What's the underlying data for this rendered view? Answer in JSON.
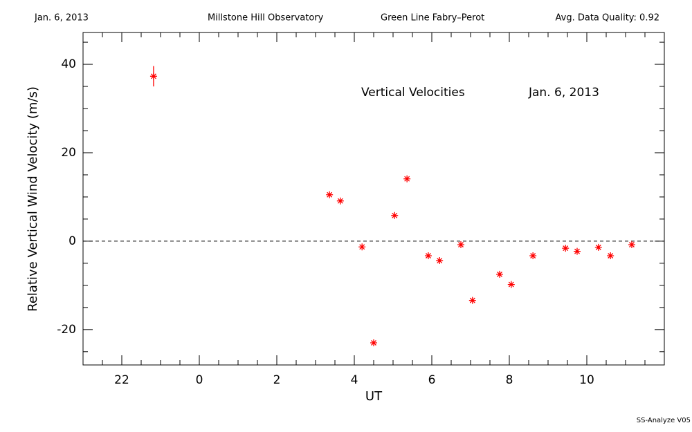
{
  "chart_data": {
    "type": "scatter",
    "header": [
      "Jan. 6, 2013",
      "Millstone Hill Observatory",
      "Green Line Fabry–Perot",
      "Avg. Data Quality: 0.92"
    ],
    "annotations": [
      "Vertical Velocities",
      "Jan. 6, 2013"
    ],
    "footer": "SS-Analyze V05",
    "xlabel": "UT",
    "ylabel": "Relative Vertical Wind Velocity (m/s)",
    "xlim": [
      -3,
      12
    ],
    "ylim": [
      -28,
      47.2
    ],
    "xticks": [
      {
        "value": -2,
        "label": "22"
      },
      0,
      2,
      4,
      6,
      8,
      10
    ],
    "yticks": [
      -20,
      0,
      20,
      40
    ],
    "xminorticks": [
      -2.5,
      -1.5,
      -1,
      -0.5,
      0.5,
      1,
      1.5,
      2.5,
      3,
      3.5,
      4.5,
      5,
      5.5,
      6.5,
      7,
      7.5,
      8.5,
      9,
      9.5,
      10.5,
      11,
      11.5
    ],
    "yminorticks": [
      -25,
      -15,
      -10,
      -5,
      5,
      10,
      15,
      25,
      30,
      35,
      45
    ],
    "reference_line": 0,
    "color": "#ff0000",
    "x": [
      -1.18,
      3.36,
      3.64,
      4.2,
      4.5,
      5.04,
      5.36,
      5.91,
      6.2,
      6.75,
      7.05,
      7.75,
      8.05,
      8.61,
      9.45,
      9.75,
      10.3,
      10.61,
      11.16
    ],
    "values": [
      37.3,
      10.5,
      9.1,
      -1.3,
      -23.0,
      5.8,
      14.1,
      -3.3,
      -4.4,
      -0.8,
      -13.4,
      -7.5,
      -9.8,
      -3.3,
      -1.6,
      -2.3,
      -1.4,
      -3.3,
      -0.8
    ],
    "errors": [
      2.3,
      null,
      null,
      null,
      null,
      null,
      null,
      null,
      null,
      null,
      null,
      null,
      null,
      null,
      null,
      null,
      null,
      null,
      null
    ]
  }
}
